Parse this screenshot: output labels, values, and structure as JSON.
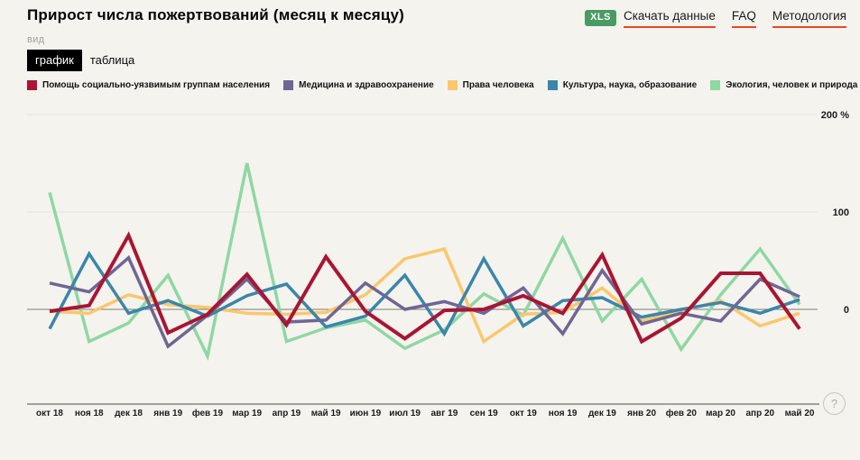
{
  "header": {
    "title": "Прирост числа пожертвований (месяц к месяцу)",
    "actions": {
      "xls_badge": "XLS",
      "download_label": "Скачать данные",
      "faq_label": "FAQ",
      "methodology_label": "Методология"
    }
  },
  "view_switcher": {
    "label": "вид",
    "options": [
      {
        "label": "график",
        "active": true
      },
      {
        "label": "таблица",
        "active": false
      }
    ]
  },
  "help_button": {
    "label": "?"
  },
  "colors": {
    "background": "#f5f3ee",
    "accent_underline": "#e84b22",
    "xls_badge_bg": "#4a9b62",
    "tab_active_bg": "#000000",
    "tab_active_fg": "#ffffff",
    "grid_line": "#e5e3de",
    "zero_line": "#7d7b76",
    "axis_line": "#4c4c4a"
  },
  "chart_data": {
    "type": "line",
    "unit": "%",
    "title": "Прирост числа пожертвований (месяц к месяцу)",
    "legend_position": "top",
    "grid": true,
    "ylim": [
      -60,
      210
    ],
    "yticks": [
      {
        "value": 200,
        "label": "200 %"
      },
      {
        "value": 100,
        "label": "100"
      },
      {
        "value": 0,
        "label": "0"
      }
    ],
    "x": [
      "окт 18",
      "ноя 18",
      "дек 18",
      "янв 19",
      "фев 19",
      "мар 19",
      "апр 19",
      "май 19",
      "июн 19",
      "июл 19",
      "авг 19",
      "сен 19",
      "окт 19",
      "ноя 19",
      "дек 19",
      "янв 20",
      "фев 20",
      "мар 20",
      "апр 20",
      "май 20"
    ],
    "series": [
      {
        "name": "Помощь социально-уязвимым группам населения",
        "color": "#a91532",
        "values": [
          -2,
          4,
          76,
          -24,
          -5,
          36,
          -16,
          54,
          -2,
          -30,
          -1,
          0,
          14,
          -4,
          56,
          -33,
          -9,
          37,
          37,
          -20
        ]
      },
      {
        "name": "Медицина и здравоохранение",
        "color": "#6f6695",
        "values": [
          27,
          18,
          53,
          -38,
          -6,
          31,
          -13,
          -11,
          27,
          0,
          8,
          -4,
          22,
          -25,
          40,
          -15,
          -4,
          -12,
          31,
          13
        ]
      },
      {
        "name": "Права человека",
        "color": "#fbc76c",
        "values": [
          -2,
          -4,
          15,
          5,
          2,
          -4,
          -5,
          -3,
          15,
          52,
          62,
          -33,
          -5,
          -3,
          22,
          -12,
          -2,
          9,
          -17,
          -4
        ]
      },
      {
        "name": "Культура, наука, образование",
        "color": "#3b86aa",
        "values": [
          -20,
          57,
          -4,
          9,
          -7,
          14,
          26,
          -18,
          -7,
          35,
          -25,
          52,
          -17,
          9,
          12,
          -8,
          0,
          7,
          -4,
          10
        ]
      },
      {
        "name": "Экология, человек и природа",
        "color": "#8ed8a3",
        "values": [
          120,
          -33,
          -14,
          35,
          -48,
          150,
          -33,
          -19,
          -11,
          -40,
          -21,
          16,
          -6,
          73,
          -12,
          31,
          -41,
          15,
          62,
          5
        ]
      }
    ]
  }
}
